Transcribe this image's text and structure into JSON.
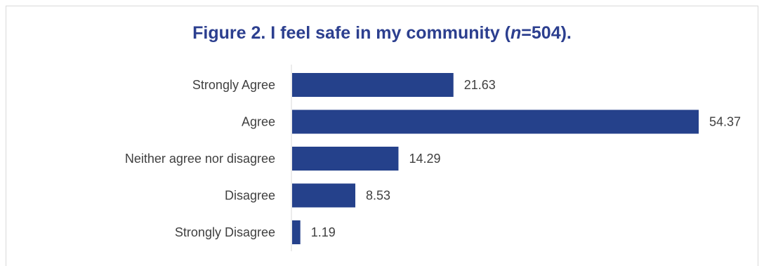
{
  "chart_data": {
    "type": "bar",
    "orientation": "horizontal",
    "title": {
      "prefix": "Figure 2. I feel safe in my community (",
      "italic": "n",
      "suffix": "=504)."
    },
    "categories": [
      "Strongly Agree",
      "Agree",
      "Neither agree nor disagree",
      "Disagree",
      "Strongly Disagree"
    ],
    "values": [
      21.63,
      54.37,
      14.29,
      8.53,
      1.19
    ],
    "value_labels": [
      "21.63",
      "54.37",
      "14.29",
      "8.53",
      "1.19"
    ],
    "xlim": [
      0,
      54.37
    ],
    "grid": false,
    "bar_color": "#25418b",
    "title_color": "#2c3f8f",
    "label_color": "#404040"
  }
}
